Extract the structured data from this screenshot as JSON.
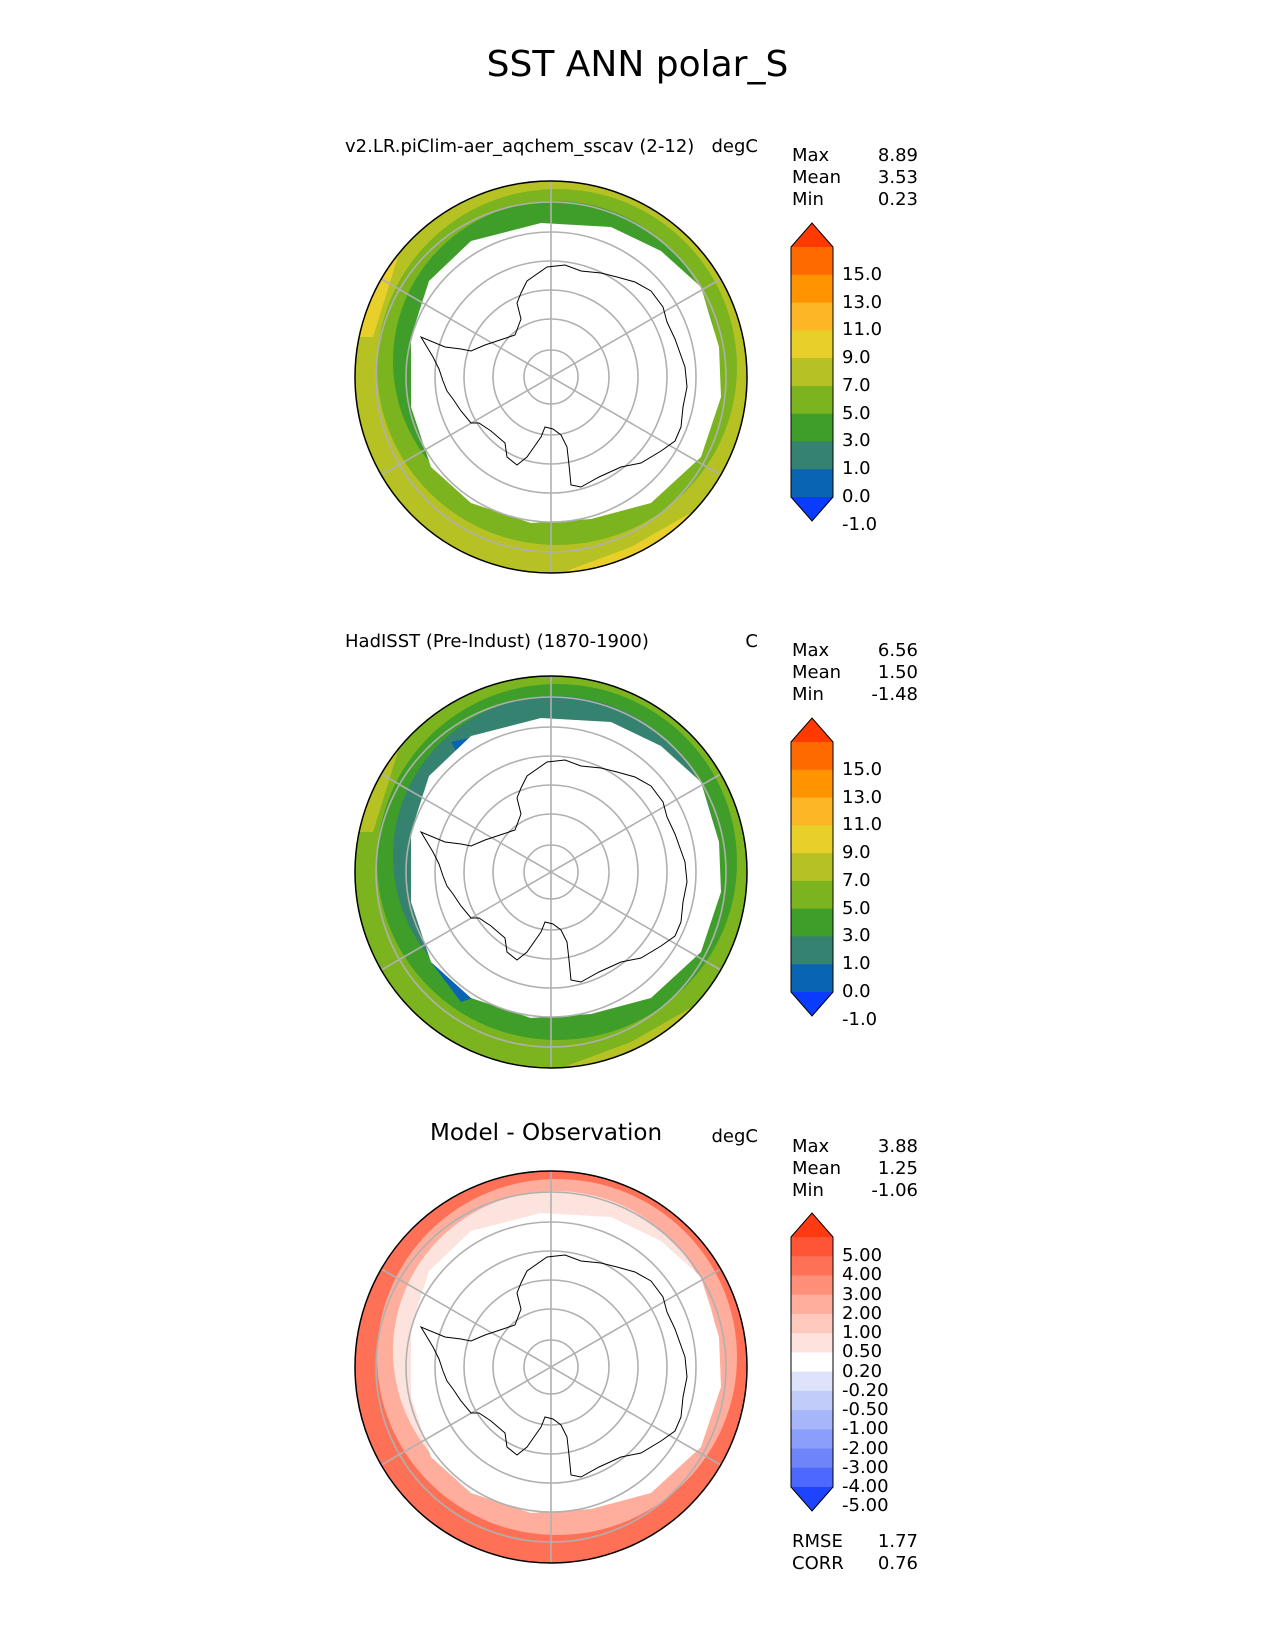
{
  "figure_title": "SST ANN polar_S",
  "panels": [
    {
      "title": "v2.LR.piClim-aer_aqchem_sscav (2-12)",
      "units": "degC",
      "stats": [
        {
          "label": "Max",
          "value": "8.89"
        },
        {
          "label": "Mean",
          "value": "3.53"
        },
        {
          "label": "Min",
          "value": "0.23"
        }
      ],
      "colorbar": {
        "labels": [
          "15.0",
          "13.0",
          "11.0",
          "9.0",
          "7.0",
          "5.0",
          "3.0",
          "1.0",
          "0.0",
          "-1.0"
        ],
        "colors": [
          "#ff3a00",
          "#ff6a00",
          "#ff9400",
          "#fdb626",
          "#e8cf2a",
          "#b6c223",
          "#7cb41f",
          "#3f9e2a",
          "#34826f",
          "#0a64b4",
          "#0a3cff"
        ]
      },
      "field_colors": {
        "outer": "#b6c223",
        "mid": "#7cb41f",
        "inner": "#3f9e2a"
      },
      "extra_outer": "#e8cf2a"
    },
    {
      "title": "HadISST (Pre-Indust) (1870-1900)",
      "units": "C",
      "stats": [
        {
          "label": "Max",
          "value": "6.56"
        },
        {
          "label": "Mean",
          "value": "1.50"
        },
        {
          "label": "Min",
          "value": "-1.48"
        }
      ],
      "colorbar": {
        "labels": [
          "15.0",
          "13.0",
          "11.0",
          "9.0",
          "7.0",
          "5.0",
          "3.0",
          "1.0",
          "0.0",
          "-1.0"
        ],
        "colors": [
          "#ff3a00",
          "#ff6a00",
          "#ff9400",
          "#fdb626",
          "#e8cf2a",
          "#b6c223",
          "#7cb41f",
          "#3f9e2a",
          "#34826f",
          "#0a64b4",
          "#0a3cff"
        ]
      },
      "field_colors": {
        "outer": "#7cb41f",
        "mid": "#3f9e2a",
        "inner": "#34826f"
      },
      "extra_outer": "#b6c223",
      "ice_edge": "#0a64b4"
    },
    {
      "title": "Model - Observation",
      "units": "degC",
      "stats": [
        {
          "label": "Max",
          "value": "3.88"
        },
        {
          "label": "Mean",
          "value": "1.25"
        },
        {
          "label": "Min",
          "value": "-1.06"
        }
      ],
      "colorbar": {
        "labels": [
          "5.00",
          "4.00",
          "3.00",
          "2.00",
          "1.00",
          "0.50",
          "0.20",
          "-0.20",
          "-0.50",
          "-1.00",
          "-2.00",
          "-3.00",
          "-4.00",
          "-5.00"
        ],
        "colors": [
          "#ff3a10",
          "#ff5536",
          "#ff7156",
          "#ff8f78",
          "#ffad9c",
          "#ffcabd",
          "#fde3dd",
          "#ffffff",
          "#dde3fb",
          "#c2ccfa",
          "#a7b6f9",
          "#8b9ef9",
          "#6e85fa",
          "#4d68fc",
          "#1e44ff"
        ]
      },
      "field_colors": {
        "outer": "#ff7156",
        "mid": "#ffad9c",
        "inner": "#fde3dd"
      },
      "metrics": [
        {
          "label": "RMSE",
          "value": "1.77"
        },
        {
          "label": "CORR",
          "value": "0.76"
        }
      ]
    }
  ]
}
